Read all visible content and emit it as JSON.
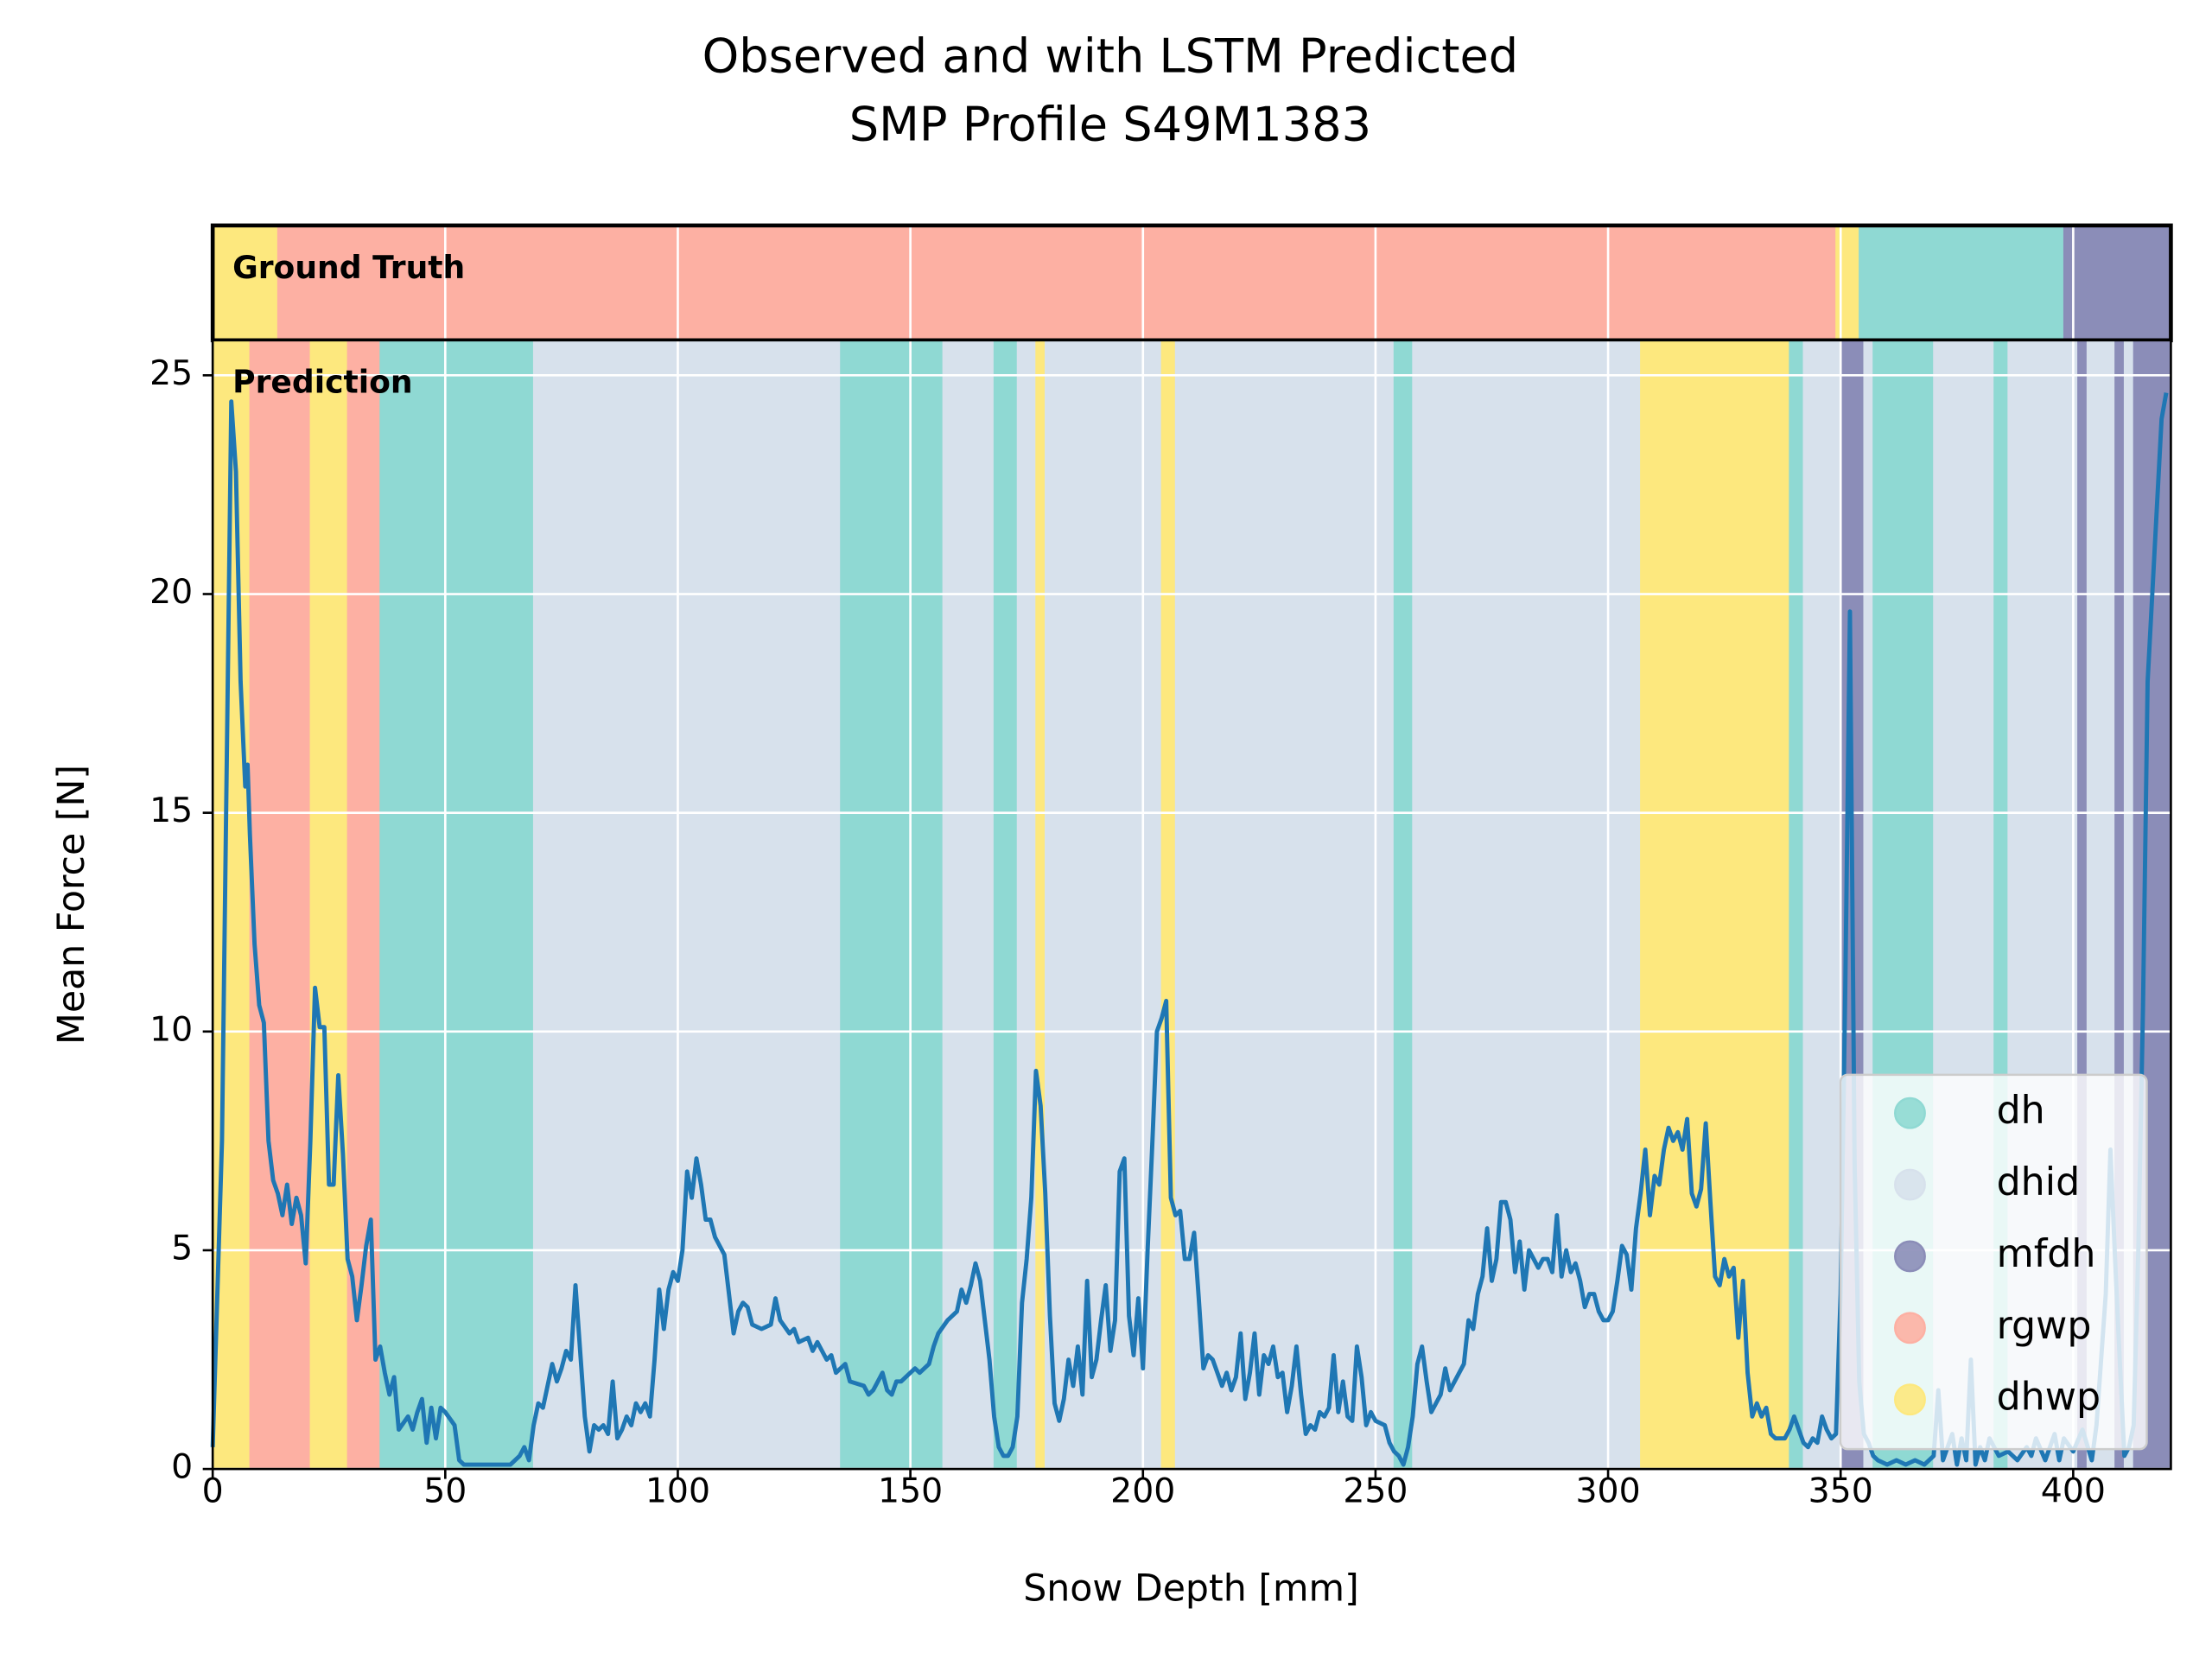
{
  "chart_data": {
    "type": "line",
    "title": [
      "Observed and with LSTM Predicted",
      "SMP Profile S49M1383"
    ],
    "xlabel": "Snow Depth [mm]",
    "ylabel": "Mean Force [N]",
    "xlim": [
      0,
      421
    ],
    "ylim": [
      0,
      25.8
    ],
    "xticks": [
      0,
      50,
      100,
      150,
      200,
      250,
      300,
      350,
      400
    ],
    "yticks": [
      0,
      5,
      10,
      15,
      20,
      25
    ],
    "grid": true,
    "color": "#1f77b4",
    "x": [
      0,
      2,
      4,
      5,
      6,
      7,
      7.5,
      8,
      9,
      10,
      11,
      12,
      13,
      14,
      15,
      16,
      17,
      18,
      19,
      20,
      21,
      22,
      23,
      24,
      25,
      26,
      27,
      28,
      29,
      30,
      31,
      32,
      33,
      34,
      35,
      36,
      37,
      38,
      39,
      40,
      42,
      43,
      44,
      45,
      46,
      47,
      48,
      49,
      50,
      52,
      53,
      54,
      56,
      60,
      64,
      66,
      67,
      68,
      69,
      70,
      71,
      72,
      73,
      74,
      75,
      76,
      77,
      78,
      79,
      80,
      81,
      82,
      83,
      84,
      85,
      86,
      87,
      88,
      89,
      90,
      91,
      92,
      93,
      94,
      95,
      96,
      97,
      98,
      99,
      100,
      101,
      102,
      103,
      104,
      105,
      106,
      107,
      108,
      110,
      112,
      113,
      114,
      115,
      116,
      118,
      120,
      121,
      122,
      124,
      125,
      126,
      128,
      129,
      130,
      132,
      133,
      134,
      136,
      137,
      140,
      141,
      142,
      144,
      145,
      146,
      147,
      148,
      150,
      151,
      152,
      154,
      155,
      156,
      158,
      160,
      161,
      162,
      163,
      164,
      165,
      166,
      167,
      168,
      169,
      170,
      171,
      172,
      173,
      174,
      175,
      176,
      177,
      178,
      179,
      180,
      181,
      182,
      183,
      184,
      185,
      186,
      187,
      188,
      189,
      190,
      191,
      192,
      193,
      194,
      195,
      196,
      197,
      198,
      199,
      200,
      201,
      202,
      203,
      204,
      205,
      206,
      207,
      208,
      209,
      210,
      211,
      212,
      213,
      214,
      215,
      216,
      217,
      218,
      219,
      220,
      221,
      222,
      223,
      224,
      225,
      226,
      227,
      228,
      229,
      230,
      231,
      232,
      233,
      234,
      235,
      236,
      237,
      238,
      239,
      240,
      241,
      242,
      243,
      244,
      245,
      246,
      247,
      248,
      249,
      250,
      252,
      253,
      254,
      255,
      256,
      257,
      258,
      259,
      260,
      261,
      262,
      263,
      264,
      265,
      266,
      267,
      268,
      269,
      270,
      271,
      272,
      273,
      274,
      275,
      276,
      277,
      278,
      279,
      280,
      281,
      282,
      283,
      284,
      285,
      286,
      287,
      288,
      289,
      290,
      291,
      292,
      293,
      294,
      295,
      296,
      297,
      298,
      299,
      300,
      301,
      302,
      303,
      304,
      305,
      306,
      307,
      308,
      309,
      310,
      311,
      312,
      313,
      314,
      315,
      316,
      317,
      318,
      319,
      320,
      321,
      322,
      323,
      324,
      325,
      326,
      327,
      328,
      329,
      330,
      331,
      332,
      333,
      334,
      335,
      336,
      338,
      339,
      340,
      341,
      342,
      343,
      344,
      345,
      346,
      347,
      348,
      349,
      350,
      351,
      352,
      353,
      354,
      355,
      356,
      357,
      358,
      360,
      362,
      364,
      366,
      368,
      370,
      371,
      372,
      374,
      375,
      376,
      377,
      378,
      379,
      380,
      381,
      382,
      384,
      386,
      388,
      390,
      391,
      392,
      394,
      396,
      397,
      398,
      400,
      402,
      404,
      405,
      406,
      407,
      408,
      409,
      410,
      411,
      412,
      413,
      414,
      415,
      416,
      417,
      418,
      419,
      420
    ],
    "values": [
      0.5,
      7.5,
      24.4,
      22.8,
      18,
      15.6,
      16.1,
      14.5,
      12,
      10.6,
      10.2,
      7.5,
      6.6,
      6.3,
      5.8,
      6.5,
      5.6,
      6.2,
      5.8,
      4.7,
      7.5,
      11.0,
      10.1,
      10.1,
      6.5,
      6.5,
      9.0,
      7.2,
      4.8,
      4.4,
      3.4,
      4.2,
      5.1,
      5.7,
      2.5,
      2.8,
      2.2,
      1.7,
      2.1,
      0.9,
      1.2,
      0.9,
      1.3,
      1.6,
      0.6,
      1.4,
      0.7,
      1.4,
      1.3,
      1.0,
      0.2,
      0.1,
      0.1,
      0.1,
      0.1,
      0.3,
      0.5,
      0.2,
      1.0,
      1.5,
      1.4,
      1.9,
      2.4,
      2.0,
      2.3,
      2.7,
      2.5,
      4.2,
      2.7,
      1.2,
      0.4,
      1.0,
      0.9,
      1.0,
      0.8,
      2.0,
      0.7,
      0.9,
      1.2,
      1.0,
      1.5,
      1.3,
      1.5,
      1.2,
      2.5,
      4.1,
      3.2,
      4.1,
      4.5,
      4.3,
      5.0,
      6.8,
      6.2,
      7.1,
      6.5,
      5.7,
      5.7,
      5.3,
      4.9,
      3.1,
      3.6,
      3.8,
      3.7,
      3.3,
      3.2,
      3.3,
      3.9,
      3.4,
      3.1,
      3.2,
      2.9,
      3.0,
      2.7,
      2.9,
      2.5,
      2.6,
      2.2,
      2.4,
      2.0,
      1.9,
      1.7,
      1.8,
      2.2,
      1.8,
      1.7,
      2.0,
      2.0,
      2.2,
      2.3,
      2.2,
      2.4,
      2.8,
      3.1,
      3.4,
      3.6,
      4.1,
      3.8,
      4.2,
      4.7,
      4.3,
      3.4,
      2.5,
      1.2,
      0.5,
      0.3,
      0.3,
      0.5,
      1.2,
      3.8,
      4.8,
      6.2,
      9.1,
      8.3,
      6.3,
      3.5,
      1.5,
      1.1,
      1.6,
      2.5,
      1.9,
      2.8,
      1.7,
      4.3,
      2.1,
      2.5,
      3.4,
      4.2,
      2.7,
      3.4,
      6.8,
      7.1,
      3.5,
      2.6,
      3.9,
      2.3,
      5.0,
      7.4,
      10.0,
      10.3,
      10.7,
      6.2,
      5.8,
      5.9,
      4.8,
      4.8,
      5.4,
      3.9,
      2.3,
      2.6,
      2.5,
      2.2,
      1.9,
      2.2,
      1.8,
      2.1,
      3.1,
      1.6,
      2.2,
      3.1,
      1.7,
      2.6,
      2.4,
      2.8,
      2.1,
      2.2,
      1.3,
      1.9,
      2.8,
      1.7,
      0.8,
      1.0,
      0.9,
      1.3,
      1.2,
      1.4,
      2.6,
      1.3,
      2.0,
      1.2,
      1.1,
      2.8,
      2.1,
      1.0,
      1.3,
      1.1,
      1.0,
      0.6,
      0.4,
      0.3,
      0.1,
      0.5,
      1.2,
      2.4,
      2.8,
      2.0,
      1.3,
      1.5,
      1.7,
      2.3,
      1.8,
      2.0,
      2.2,
      2.4,
      3.4,
      3.2,
      4.0,
      4.4,
      5.5,
      4.3,
      4.8,
      6.1,
      6.1,
      5.7,
      4.5,
      5.2,
      4.1,
      5.0,
      4.8,
      4.6,
      4.8,
      4.8,
      4.5,
      5.8,
      4.4,
      5.0,
      4.5,
      4.7,
      4.3,
      3.7,
      4.0,
      4.0,
      3.6,
      3.4,
      3.4,
      3.6,
      4.3,
      5.1,
      4.9,
      4.1,
      5.5,
      6.3,
      7.3,
      5.8,
      6.7,
      6.5,
      7.3,
      7.8,
      7.5,
      7.7,
      7.3,
      8.0,
      6.3,
      6.0,
      6.4,
      7.9,
      6.1,
      4.4,
      4.2,
      4.8,
      4.4,
      4.6,
      3.0,
      4.3,
      2.2,
      1.2,
      1.5,
      1.2,
      1.4,
      0.8,
      0.7,
      0.7,
      0.9,
      1.2,
      0.9,
      0.6,
      0.5,
      0.7,
      0.6,
      1.2,
      0.9,
      0.7,
      0.8,
      4.0,
      11.0,
      19.6,
      7.0,
      2.0,
      0.8,
      0.6,
      0.3,
      0.2,
      0.1,
      0.2,
      0.1,
      0.2,
      0.1,
      0.3,
      1.8,
      0.2,
      0.8,
      0.1,
      0.7,
      0.2,
      2.5,
      0.1,
      0.5,
      0.2,
      0.7,
      0.3,
      0.4,
      0.2,
      0.5,
      0.3,
      0.7,
      0.2,
      0.8,
      0.2,
      0.7,
      0.4,
      0.9,
      0.2,
      1.0,
      2.5,
      4.0,
      7.3,
      4.8,
      2.5,
      0.3,
      0.5,
      1.0,
      5.0,
      10.5,
      18.0,
      20.0,
      22.0,
      24.0,
      24.6
    ],
    "legend": {
      "position": "lower right",
      "entries": [
        {
          "name": "dh",
          "color": "#8fd9d3"
        },
        {
          "name": "dhid",
          "color": "#d7e1ec"
        },
        {
          "name": "mfdh",
          "color": "#8b8db8"
        },
        {
          "name": "rgwp",
          "color": "#fdb0a3"
        },
        {
          "name": "dhwp",
          "color": "#fde87e"
        }
      ]
    },
    "ground_truth": {
      "label": "Ground Truth",
      "segments": [
        {
          "class": "dhwp",
          "start": 0,
          "end": 14
        },
        {
          "class": "rgwp",
          "start": 14,
          "end": 349
        },
        {
          "class": "dhwp",
          "start": 349,
          "end": 354
        },
        {
          "class": "dh",
          "start": 354,
          "end": 398
        },
        {
          "class": "mfdh",
          "start": 398,
          "end": 421
        }
      ]
    },
    "prediction": {
      "label": "Prediction",
      "segments": [
        {
          "class": "dhwp",
          "start": 0,
          "end": 8
        },
        {
          "class": "rgwp",
          "start": 8,
          "end": 21
        },
        {
          "class": "dhwp",
          "start": 21,
          "end": 29
        },
        {
          "class": "rgwp",
          "start": 29,
          "end": 36
        },
        {
          "class": "dh",
          "start": 36,
          "end": 69
        },
        {
          "class": "dhid",
          "start": 69,
          "end": 135
        },
        {
          "class": "dh",
          "start": 135,
          "end": 157
        },
        {
          "class": "dhid",
          "start": 157,
          "end": 168
        },
        {
          "class": "dh",
          "start": 168,
          "end": 173
        },
        {
          "class": "dhid",
          "start": 173,
          "end": 177
        },
        {
          "class": "dhwp",
          "start": 177,
          "end": 179
        },
        {
          "class": "dhid",
          "start": 179,
          "end": 204
        },
        {
          "class": "dhwp",
          "start": 204,
          "end": 207
        },
        {
          "class": "dhid",
          "start": 207,
          "end": 254
        },
        {
          "class": "dh",
          "start": 254,
          "end": 258
        },
        {
          "class": "dhid",
          "start": 258,
          "end": 307
        },
        {
          "class": "dhwp",
          "start": 307,
          "end": 339
        },
        {
          "class": "dh",
          "start": 339,
          "end": 342
        },
        {
          "class": "dhid",
          "start": 342,
          "end": 350
        },
        {
          "class": "mfdh",
          "start": 350,
          "end": 355
        },
        {
          "class": "dhid",
          "start": 355,
          "end": 357
        },
        {
          "class": "dh",
          "start": 357,
          "end": 370
        },
        {
          "class": "dhid",
          "start": 370,
          "end": 383
        },
        {
          "class": "dh",
          "start": 383,
          "end": 386
        },
        {
          "class": "dhid",
          "start": 386,
          "end": 401
        },
        {
          "class": "mfdh",
          "start": 401,
          "end": 403
        },
        {
          "class": "dhid",
          "start": 403,
          "end": 409
        },
        {
          "class": "mfdh",
          "start": 409,
          "end": 411
        },
        {
          "class": "dhid",
          "start": 411,
          "end": 413
        },
        {
          "class": "mfdh",
          "start": 413,
          "end": 421
        }
      ]
    }
  }
}
